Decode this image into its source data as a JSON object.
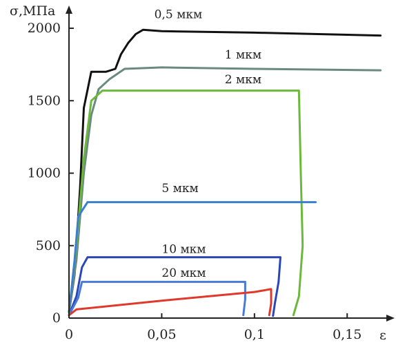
{
  "chart_data": {
    "type": "line",
    "xlabel": "ε",
    "ylabel": "σ,МПа",
    "xlim": [
      0,
      0.17
    ],
    "ylim": [
      0,
      2100
    ],
    "grid": false,
    "legend": "inline labels",
    "x_ticks": [
      {
        "value": 0,
        "label": "0"
      },
      {
        "value": 0.05,
        "label": "0,05"
      },
      {
        "value": 0.1,
        "label": "0,1"
      },
      {
        "value": 0.15,
        "label": "0,15"
      }
    ],
    "y_ticks": [
      {
        "value": 0,
        "label": "0"
      },
      {
        "value": 500,
        "label": "500"
      },
      {
        "value": 1000,
        "label": "1000"
      },
      {
        "value": 1500,
        "label": "1500"
      },
      {
        "value": 2000,
        "label": "2000"
      }
    ],
    "series": [
      {
        "name": "0,5 мкм",
        "color": "#111111",
        "label_at": [
          0.046,
          2070
        ],
        "points": [
          [
            0,
            40
          ],
          [
            0.003,
            300
          ],
          [
            0.006,
            900
          ],
          [
            0.008,
            1450
          ],
          [
            0.012,
            1700
          ],
          [
            0.02,
            1700
          ],
          [
            0.025,
            1720
          ],
          [
            0.028,
            1820
          ],
          [
            0.032,
            1900
          ],
          [
            0.036,
            1960
          ],
          [
            0.04,
            1990
          ],
          [
            0.05,
            1980
          ],
          [
            0.1,
            1970
          ],
          [
            0.168,
            1950
          ]
        ]
      },
      {
        "name": "1 мкм",
        "color": "#6a8a80",
        "label_at": [
          0.084,
          1790
        ],
        "points": [
          [
            0,
            40
          ],
          [
            0.004,
            400
          ],
          [
            0.008,
            1000
          ],
          [
            0.012,
            1400
          ],
          [
            0.016,
            1580
          ],
          [
            0.022,
            1650
          ],
          [
            0.03,
            1720
          ],
          [
            0.05,
            1730
          ],
          [
            0.1,
            1720
          ],
          [
            0.168,
            1710
          ]
        ]
      },
      {
        "name": "2 мкм",
        "color": "#6cb83c",
        "label_at": [
          0.084,
          1620
        ],
        "points": [
          [
            0,
            40
          ],
          [
            0.004,
            500
          ],
          [
            0.008,
            1100
          ],
          [
            0.012,
            1500
          ],
          [
            0.018,
            1570
          ],
          [
            0.05,
            1570
          ],
          [
            0.1,
            1570
          ],
          [
            0.124,
            1570
          ],
          [
            0.125,
            1000
          ],
          [
            0.126,
            500
          ],
          [
            0.124,
            150
          ],
          [
            0.121,
            20
          ]
        ]
      },
      {
        "name": "5 мкм",
        "color": "#3a7fcf",
        "label_at": [
          0.05,
          870
        ],
        "points": [
          [
            0,
            40
          ],
          [
            0.003,
            400
          ],
          [
            0.005,
            700
          ],
          [
            0.01,
            800
          ],
          [
            0.05,
            800
          ],
          [
            0.1,
            800
          ],
          [
            0.133,
            800
          ]
        ]
      },
      {
        "name": "10 мкм",
        "color": "#2b47b5",
        "label_at": [
          0.05,
          450
        ],
        "points": [
          [
            0,
            20
          ],
          [
            0.004,
            150
          ],
          [
            0.007,
            350
          ],
          [
            0.01,
            420
          ],
          [
            0.05,
            420
          ],
          [
            0.1,
            420
          ],
          [
            0.114,
            420
          ],
          [
            0.113,
            250
          ],
          [
            0.111,
            100
          ],
          [
            0.11,
            15
          ]
        ]
      },
      {
        "name": "20 мкм",
        "color": "#4a7ad8",
        "label_at": [
          0.05,
          285
        ],
        "points": [
          [
            0,
            20
          ],
          [
            0.005,
            140
          ],
          [
            0.007,
            250
          ],
          [
            0.05,
            250
          ],
          [
            0.095,
            250
          ],
          [
            0.095,
            130
          ],
          [
            0.094,
            20
          ]
        ]
      },
      {
        "name": "",
        "color": "#e0382a",
        "points": [
          [
            0,
            20
          ],
          [
            0.004,
            60
          ],
          [
            0.05,
            120
          ],
          [
            0.1,
            180
          ],
          [
            0.109,
            200
          ],
          [
            0.109,
            100
          ],
          [
            0.108,
            20
          ]
        ]
      }
    ]
  }
}
